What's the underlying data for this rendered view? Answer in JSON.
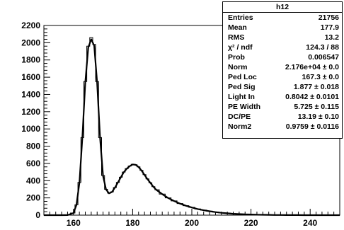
{
  "chart_data": {
    "type": "line",
    "title": "",
    "xlabel": "",
    "ylabel": "",
    "xlim": [
      150,
      250
    ],
    "ylim": [
      0,
      2200
    ],
    "x_ticks": [
      "160",
      "180",
      "200",
      "220",
      "240"
    ],
    "y_ticks": [
      "0",
      "200",
      "400",
      "600",
      "800",
      "1000",
      "1200",
      "1400",
      "1600",
      "1800",
      "2000",
      "2200"
    ],
    "series": [
      {
        "kind": "histogram",
        "x": [
          150,
          152,
          154,
          156,
          158,
          160,
          161,
          162,
          163,
          164,
          165,
          166,
          167,
          168,
          169,
          170,
          171,
          172,
          173,
          174,
          175,
          176,
          177,
          178,
          179,
          180,
          181,
          182,
          183,
          184,
          185,
          186,
          187,
          188,
          190,
          192,
          194,
          196,
          198,
          200,
          202,
          204,
          206,
          208,
          210,
          212,
          214,
          216,
          218,
          220,
          222,
          224,
          226,
          228,
          230,
          232,
          234,
          236,
          238,
          240,
          242,
          244,
          246,
          248,
          250
        ],
        "y": [
          0,
          0,
          0,
          0,
          1,
          25,
          120,
          380,
          900,
          1550,
          1960,
          2060,
          1980,
          1550,
          900,
          460,
          300,
          255,
          270,
          320,
          380,
          440,
          500,
          540,
          570,
          590,
          585,
          560,
          520,
          470,
          420,
          375,
          330,
          295,
          245,
          200,
          165,
          135,
          110,
          90,
          72,
          58,
          46,
          36,
          28,
          22,
          17,
          13,
          10,
          7,
          5,
          4,
          3,
          2,
          2,
          1,
          1,
          1,
          0,
          0,
          0,
          0,
          0,
          0,
          0
        ]
      },
      {
        "kind": "fit",
        "x": [
          150,
          152,
          154,
          156,
          158,
          160,
          161,
          162,
          163,
          164,
          165,
          166,
          167,
          168,
          169,
          170,
          171,
          172,
          173,
          174,
          175,
          176,
          177,
          178,
          179,
          180,
          181,
          182,
          183,
          184,
          185,
          186,
          187,
          188,
          190,
          192,
          194,
          196,
          198,
          200,
          202,
          204,
          206,
          208,
          210,
          212,
          214,
          216,
          218,
          220,
          222,
          224,
          226,
          228,
          230,
          232,
          234,
          236,
          238,
          240,
          242,
          244,
          246,
          248,
          250
        ],
        "y": [
          0,
          0,
          0,
          0,
          1,
          25,
          118,
          375,
          890,
          1540,
          1945,
          2040,
          1965,
          1540,
          895,
          455,
          298,
          253,
          268,
          318,
          378,
          438,
          498,
          538,
          568,
          588,
          584,
          558,
          518,
          468,
          418,
          374,
          329,
          294,
          244,
          199,
          164,
          134,
          109,
          89,
          71,
          57,
          45,
          35,
          27,
          21,
          16,
          12,
          9,
          7,
          5,
          4,
          3,
          2,
          2,
          1,
          1,
          1,
          0,
          0,
          0,
          0,
          0,
          0,
          0
        ]
      }
    ]
  },
  "stats": {
    "title": "h12",
    "rows": [
      {
        "label": "Entries",
        "value": "21756"
      },
      {
        "label": "Mean",
        "value": "177.9"
      },
      {
        "label": "RMS",
        "value": "13.2"
      },
      {
        "label": "χ² / ndf",
        "value": "124.3 / 88"
      },
      {
        "label": "Prob",
        "value": "0.006547"
      },
      {
        "label": "Norm",
        "value": "2.176e+04 ± 0.0"
      },
      {
        "label": "Ped Loc",
        "value": "167.3 ± 0.0"
      },
      {
        "label": "Ped Sig",
        "value": "1.877 ± 0.018"
      },
      {
        "label": "Light In",
        "value": "0.8042 ± 0.0101"
      },
      {
        "label": "PE Width",
        "value": "5.725 ± 0.115"
      },
      {
        "label": "DC/PE",
        "value": "13.19 ± 0.10"
      },
      {
        "label": "Norm2",
        "value": "0.9759 ± 0.0116"
      }
    ]
  }
}
